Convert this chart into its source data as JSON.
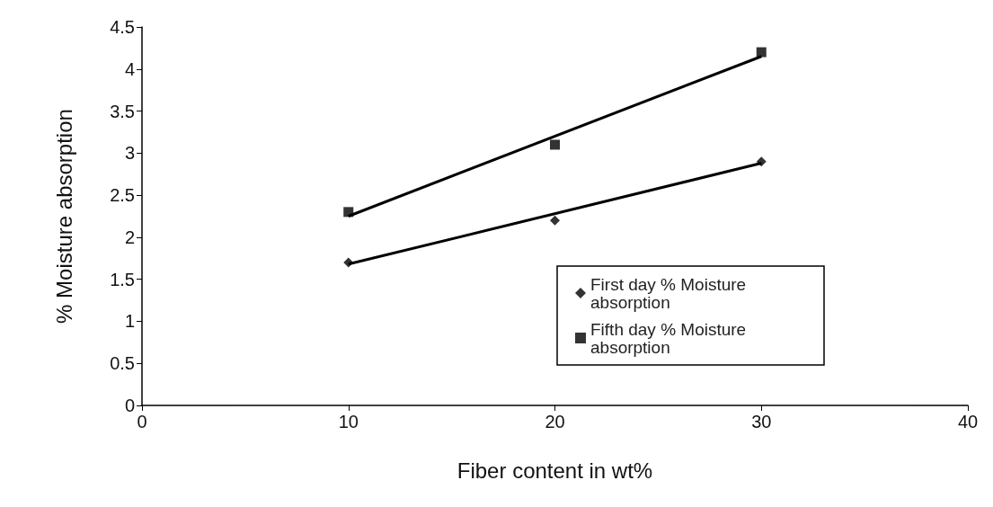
{
  "chart_data": {
    "type": "scatter",
    "xlabel": "Fiber content in wt%",
    "ylabel": "% Moisture absorption",
    "xlim": [
      0,
      40
    ],
    "xticks": [
      0,
      10,
      20,
      30,
      40
    ],
    "ylim": [
      0,
      4.5
    ],
    "yticks": [
      0,
      0.5,
      1,
      1.5,
      2,
      2.5,
      3,
      3.5,
      4,
      4.5
    ],
    "grid": false,
    "legend": "bottom right",
    "series": [
      {
        "name": "First day % Moisture absorption",
        "color": "#000000",
        "marker": "diamond",
        "x": [
          10,
          20,
          30
        ],
        "values": [
          1.7,
          2.2,
          2.9
        ]
      },
      {
        "name": "Fifth day % Moisture absorption",
        "color": "#000000",
        "marker": "square",
        "x": [
          10,
          20,
          30
        ],
        "values": [
          2.3,
          3.1,
          4.2
        ]
      },
      {
        "type": "line",
        "color": "#000000",
        "marker": "none",
        "line_style": "solid",
        "x": [
          10,
          30
        ],
        "values": [
          1.68,
          2.88
        ]
      },
      {
        "type": "line",
        "color": "#000000",
        "marker": "none",
        "line_style": "solid",
        "x": [
          10,
          30
        ],
        "values": [
          2.25,
          4.15
        ]
      }
    ]
  }
}
